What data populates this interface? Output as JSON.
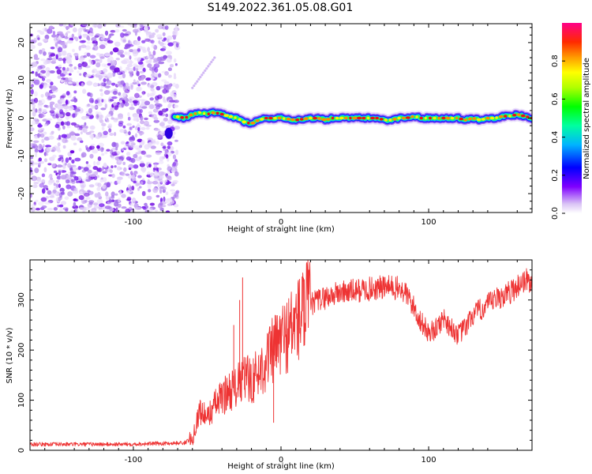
{
  "title": "S149.2022.361.05.08.G01",
  "chart_data": [
    {
      "type": "heatmap",
      "xlabel": "Height of straight line (km)",
      "ylabel": "Frequency (Hz)",
      "xlim": [
        -170,
        170
      ],
      "ylim": [
        -25,
        25
      ],
      "xticks": [
        -100,
        0,
        100
      ],
      "yticks": [
        -20,
        -10,
        0,
        10,
        20
      ],
      "colorbar": {
        "label": "Normalized spectral amplitude",
        "range": [
          0,
          1
        ],
        "ticks": [
          "0.0",
          "0.2",
          "0.4",
          "0.6",
          "0.8"
        ],
        "colormap": "gist_rainbow_r"
      },
      "noise_region": {
        "x_range": [
          -170,
          -70
        ],
        "y_range": [
          -25,
          25
        ]
      },
      "ridge_track": {
        "x": [
          -72,
          -65,
          -60,
          -55,
          -50,
          -45,
          -40,
          -35,
          -30,
          -25,
          -20,
          -15,
          -10,
          -5,
          0,
          10,
          20,
          25,
          30,
          35,
          40,
          50,
          60,
          65,
          70,
          75,
          80,
          85,
          90,
          95,
          100,
          110,
          120,
          125,
          130,
          135,
          140,
          145,
          150,
          155,
          160,
          165,
          170
        ],
        "y": [
          0.5,
          0.0,
          1.0,
          1.5,
          1.0,
          1.5,
          1.0,
          0.5,
          0.0,
          -1.0,
          -1.5,
          -0.5,
          0.0,
          0.0,
          0.0,
          -0.5,
          0.0,
          0.0,
          -0.5,
          0.0,
          0.0,
          0.0,
          0.0,
          0.0,
          -0.5,
          -0.5,
          0.0,
          0.0,
          0.5,
          0.0,
          0.0,
          0.0,
          0.0,
          -0.5,
          0.0,
          -0.5,
          0.0,
          0.0,
          0.5,
          0.5,
          1.0,
          0.5,
          0.0
        ]
      },
      "spur": {
        "x": [
          -60,
          -45
        ],
        "y": [
          8,
          16
        ]
      }
    },
    {
      "type": "line",
      "xlabel": "Height of straight line (km)",
      "ylabel": "SNR (10 * v/v)",
      "xlim": [
        -170,
        170
      ],
      "ylim": [
        0,
        380
      ],
      "xticks": [
        -100,
        0,
        100
      ],
      "yticks": [
        0,
        100,
        200,
        300
      ],
      "series_color": "#ee3333",
      "series": [
        {
          "x": [
            -170,
            -150,
            -130,
            -110,
            -90,
            -75,
            -65,
            -60,
            -55,
            -50,
            -45,
            -40,
            -35,
            -30,
            -25,
            -20,
            -15,
            -10,
            -5,
            0,
            5,
            10,
            15,
            20,
            25,
            30,
            40,
            50,
            60,
            70,
            75,
            80,
            85,
            90,
            95,
            100,
            105,
            110,
            115,
            120,
            125,
            130,
            135,
            140,
            145,
            150,
            155,
            160,
            165,
            170
          ],
          "y": [
            12,
            12,
            12,
            12,
            13,
            14,
            15,
            25,
            80,
            65,
            90,
            105,
            120,
            125,
            145,
            140,
            155,
            180,
            200,
            220,
            235,
            255,
            275,
            290,
            300,
            305,
            315,
            318,
            322,
            325,
            325,
            322,
            312,
            285,
            255,
            235,
            242,
            265,
            245,
            230,
            245,
            270,
            280,
            290,
            300,
            308,
            315,
            328,
            340,
            335
          ]
        }
      ],
      "spikes": [
        {
          "x": -26,
          "y": 345
        },
        {
          "x": -28,
          "y": 300
        },
        {
          "x": -32,
          "y": 250
        },
        {
          "x": -5,
          "y": 55
        }
      ]
    }
  ]
}
